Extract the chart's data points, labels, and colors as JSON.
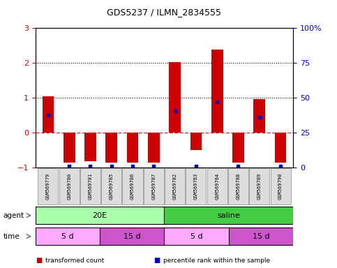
{
  "title": "GDS5237 / ILMN_2834555",
  "samples": [
    "GSM569779",
    "GSM569780",
    "GSM569781",
    "GSM569785",
    "GSM569786",
    "GSM569787",
    "GSM569782",
    "GSM569783",
    "GSM569784",
    "GSM569788",
    "GSM569789",
    "GSM569790"
  ],
  "bar_values": [
    1.05,
    -0.85,
    -0.82,
    -0.85,
    -0.85,
    -0.85,
    2.02,
    -0.5,
    2.38,
    -0.85,
    0.97,
    -0.85
  ],
  "blue_dot_values": [
    0.5,
    -0.95,
    -0.95,
    -0.95,
    -0.95,
    -0.95,
    0.62,
    -0.95,
    0.88,
    -0.95,
    0.45,
    -0.95
  ],
  "ylim_left": [
    -1.0,
    3.0
  ],
  "ylim_right": [
    0,
    100
  ],
  "yticks_left": [
    -1,
    0,
    1,
    2,
    3
  ],
  "yticks_right": [
    0,
    25,
    50,
    75,
    100
  ],
  "yticklabels_right": [
    "0",
    "25",
    "50",
    "75",
    "100%"
  ],
  "bar_color": "#CC0000",
  "blue_dot_color": "#0000CC",
  "zero_line_color": "#CC3333",
  "grid_line_color": "black",
  "agent_row": [
    {
      "label": "20E",
      "start": 0,
      "end": 6,
      "color": "#AAFFAA"
    },
    {
      "label": "saline",
      "start": 6,
      "end": 12,
      "color": "#44CC44"
    }
  ],
  "time_row": [
    {
      "label": "5 d",
      "start": 0,
      "end": 3,
      "color": "#FFAAFF"
    },
    {
      "label": "15 d",
      "start": 3,
      "end": 6,
      "color": "#CC55CC"
    },
    {
      "label": "5 d",
      "start": 6,
      "end": 9,
      "color": "#FFAAFF"
    },
    {
      "label": "15 d",
      "start": 9,
      "end": 12,
      "color": "#CC55CC"
    }
  ],
  "legend_items": [
    {
      "label": "transformed count",
      "color": "#CC0000"
    },
    {
      "label": "percentile rank within the sample",
      "color": "#0000CC"
    }
  ],
  "bar_width": 0.55,
  "bg_color": "#FFFFFF",
  "plot_bg_color": "#FFFFFF",
  "tick_label_color_left": "#CC0000",
  "tick_label_color_right": "#0000CC",
  "sample_box_color": "#DDDDDD"
}
